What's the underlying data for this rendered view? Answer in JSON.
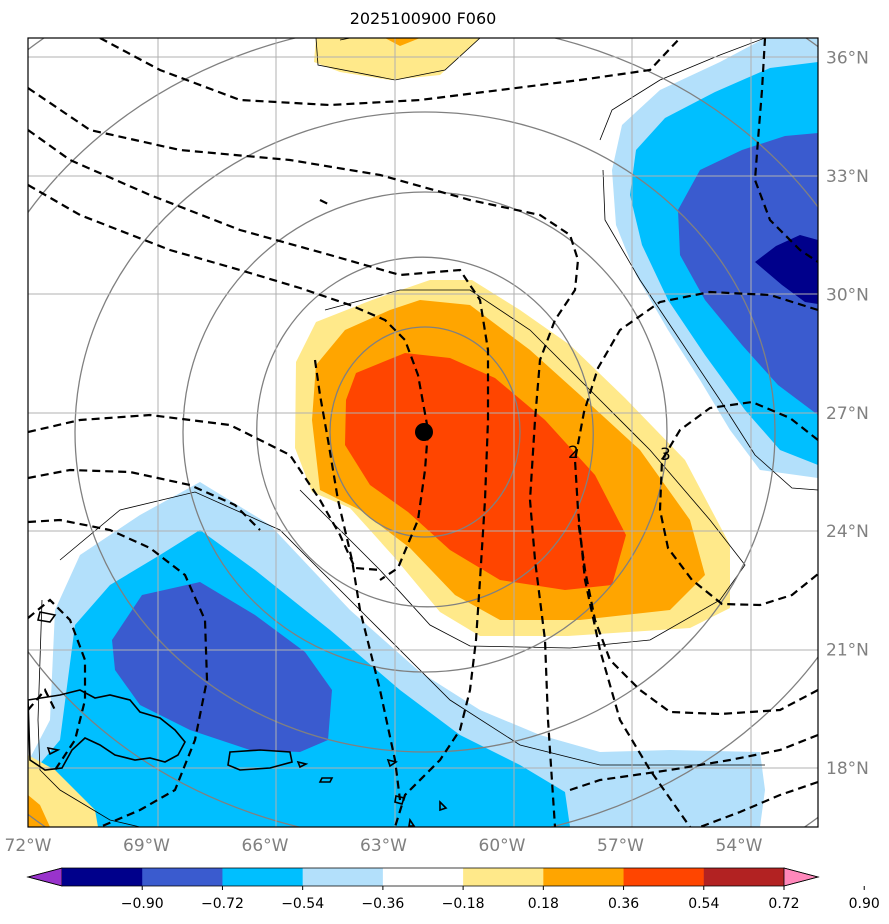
{
  "chart_data": {
    "type": "contour-map",
    "title": "2025100900 F060",
    "x_ticks": [
      "72°W",
      "69°W",
      "66°W",
      "63°W",
      "60°W",
      "57°W",
      "54°W"
    ],
    "x_tick_values": [
      -72,
      -69,
      -66,
      -63,
      -60,
      -57,
      -54
    ],
    "y_ticks": [
      "18°N",
      "21°N",
      "24°N",
      "27°N",
      "30°N",
      "33°N",
      "36°N"
    ],
    "y_tick_values": [
      18,
      21,
      24,
      27,
      30,
      33,
      36
    ],
    "extent": {
      "lon": [
        -72,
        -52
      ],
      "lat": [
        16.5,
        36.5
      ]
    },
    "colorbar": {
      "levels": [
        "−0.90",
        "−0.72",
        "−0.54",
        "−0.36",
        "−0.18",
        "0.18",
        "0.36",
        "0.54",
        "0.72",
        "0.90"
      ],
      "level_values": [
        -0.9,
        -0.72,
        -0.54,
        -0.36,
        -0.18,
        0.18,
        0.36,
        0.54,
        0.72,
        0.9
      ],
      "colors": [
        "#9933cc",
        "#00008b",
        "#3a5bcf",
        "#00bfff",
        "#b3e0fb",
        "#ffffff",
        "#ffe98a",
        "#ffa500",
        "#ff4500",
        "#b22222",
        "#ff88bb"
      ],
      "extend": "both"
    },
    "storm_center": {
      "lon": -62.3,
      "lat": 26.5
    },
    "contour_labels": [
      "2",
      "3"
    ]
  }
}
